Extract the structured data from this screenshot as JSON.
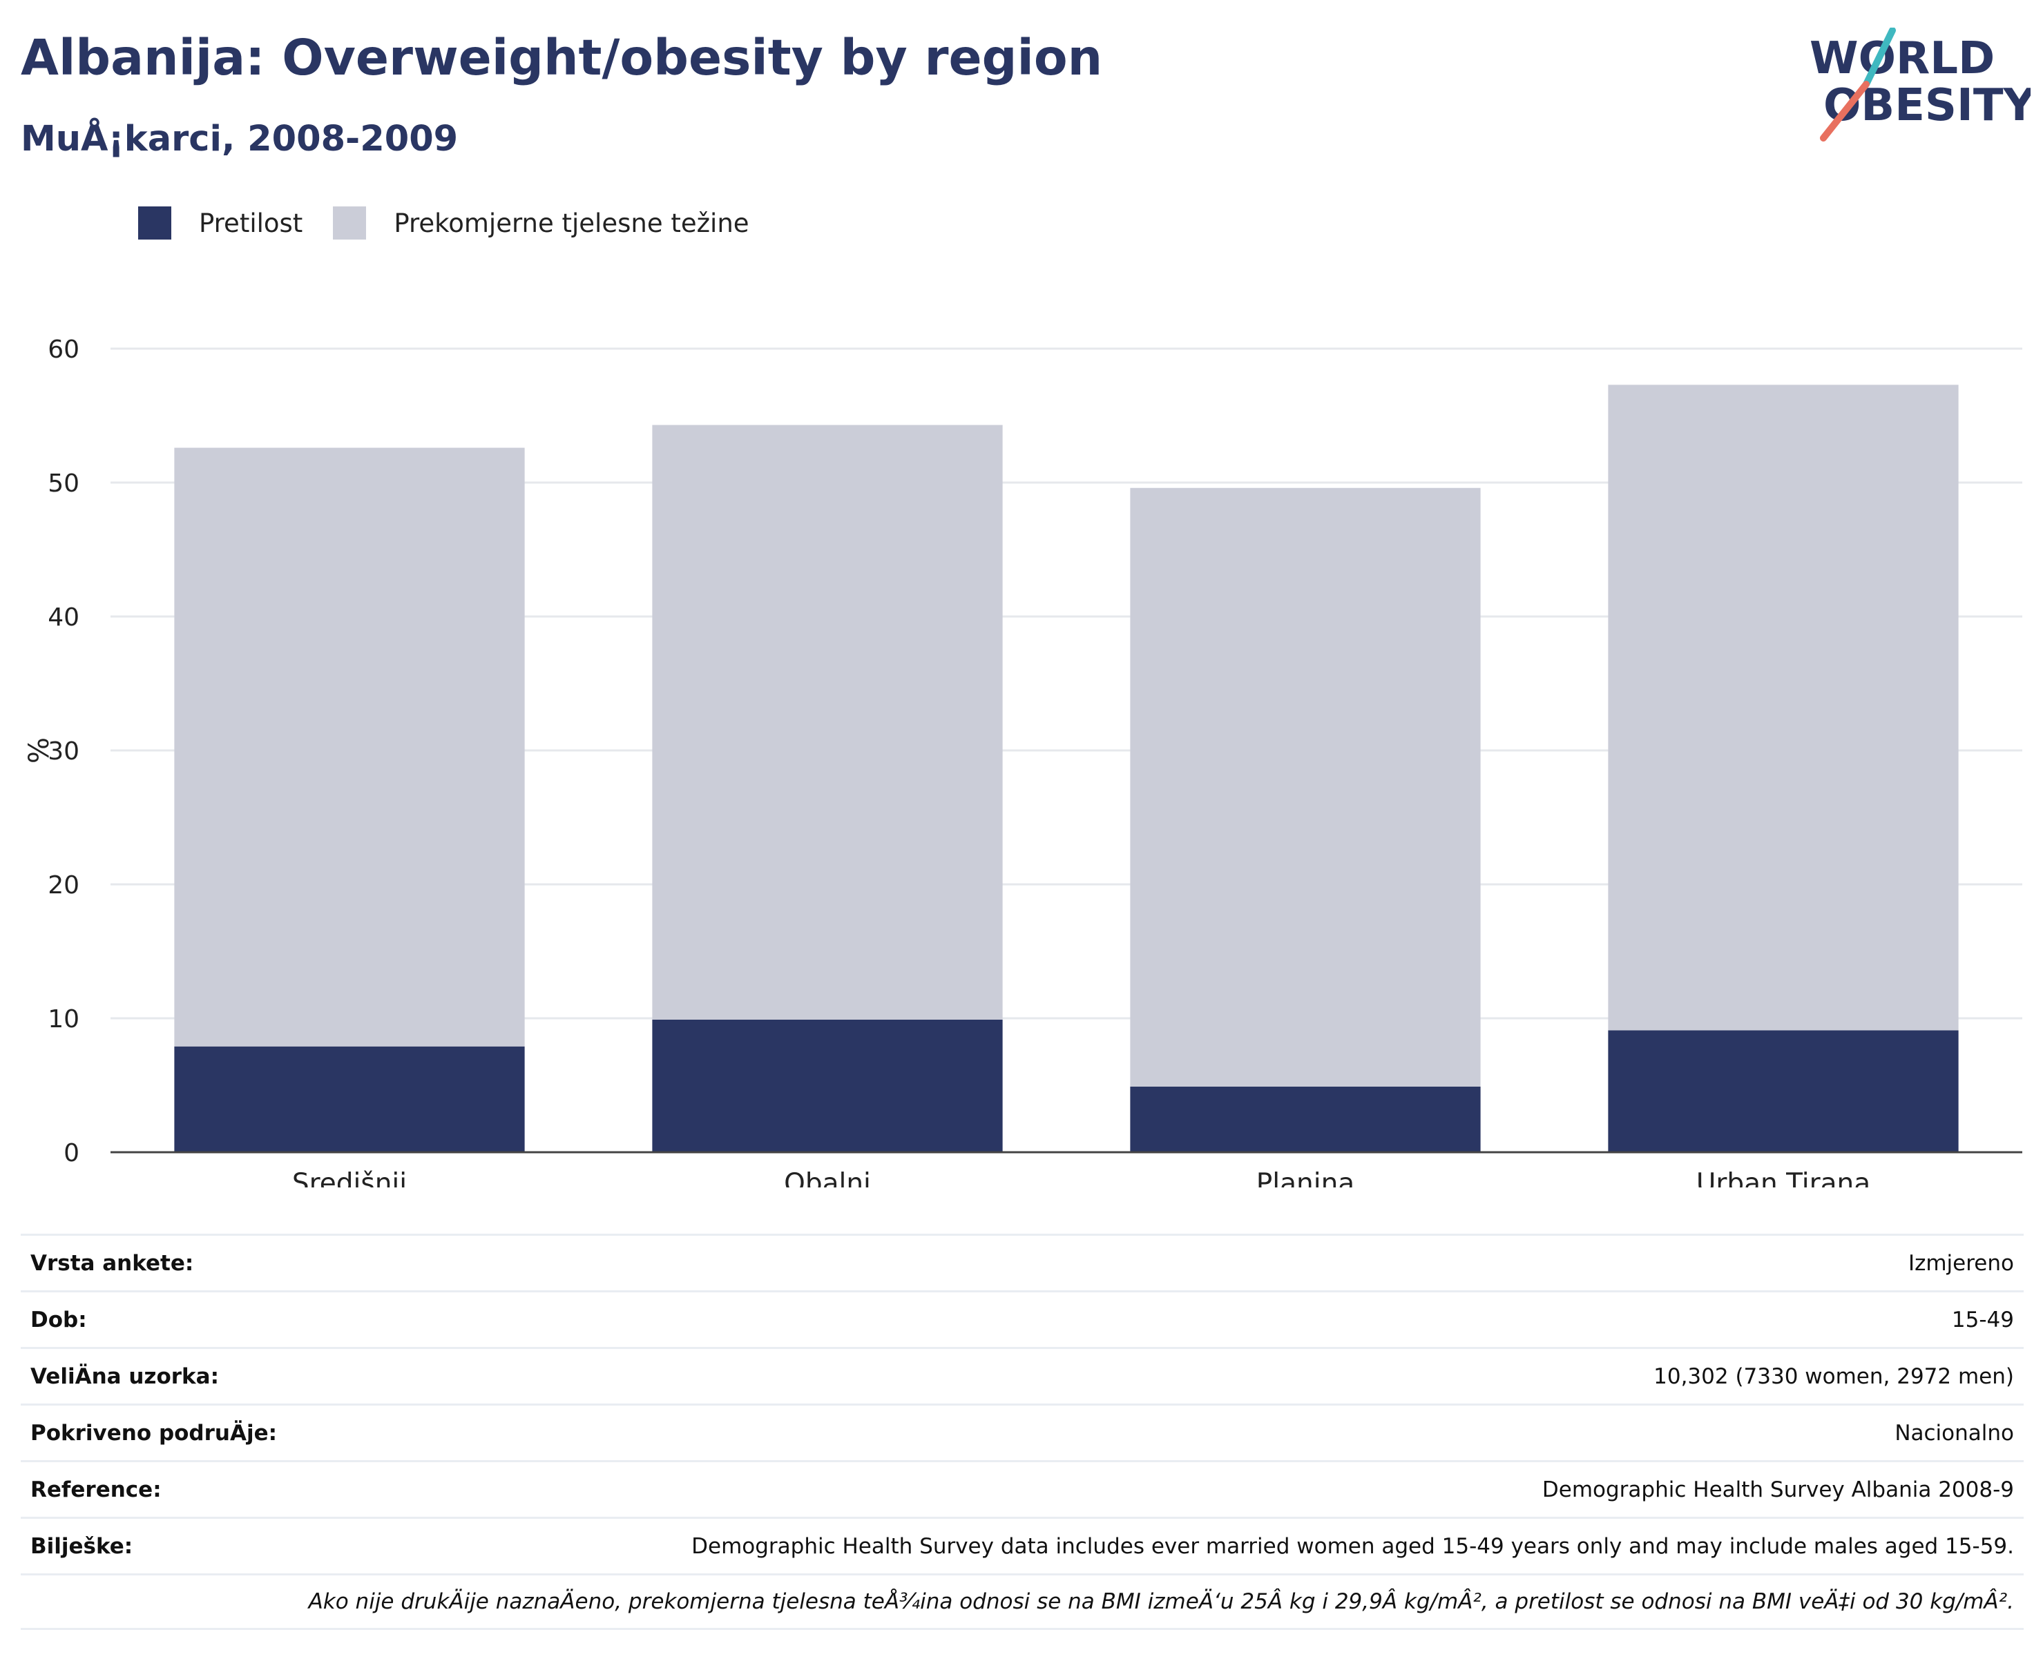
{
  "header": {
    "title": "Albanija: Overweight/obesity by region",
    "subtitle": "MuÅ¡karci, 2008-2009"
  },
  "logo": {
    "line1": "WORLD",
    "line2": "OBESITY",
    "colors": {
      "text": "#2a3663",
      "slash_top": "#3fb8c0",
      "slash_bottom": "#e8705f"
    }
  },
  "colors": {
    "obesity": "#2a3663",
    "overweight": "#cbcdd8",
    "grid": "#e6e8ec",
    "axis": "#444444"
  },
  "chart_data": {
    "type": "bar",
    "stacked": true,
    "categories": [
      "Središnji",
      "Obalni",
      "Planina",
      "Urban Tirana"
    ],
    "series": [
      {
        "name": "Pretilost",
        "values": [
          7.9,
          9.9,
          4.9,
          9.1
        ]
      },
      {
        "name": "Prekomjerne tjelesne težine",
        "values": [
          44.7,
          44.4,
          44.7,
          48.2
        ]
      }
    ],
    "ylabel": "%",
    "ylim": [
      0,
      60
    ],
    "yticks": [
      0,
      10,
      20,
      30,
      40,
      50,
      60
    ],
    "grid": true,
    "legend": "top-left"
  },
  "info": {
    "rows": [
      {
        "key": "Vrsta ankete:",
        "value": "Izmjereno"
      },
      {
        "key": "Dob:",
        "value": "15-49"
      },
      {
        "key": "VeliÄna uzorka:",
        "value": "10,302 (7330 women, 2972 men)"
      },
      {
        "key": "Pokriveno podruÄje:",
        "value": "Nacionalno"
      },
      {
        "key": "Reference:",
        "value": "Demographic Health Survey Albania 2008-9"
      },
      {
        "key": "Bilješke:",
        "value": "Demographic Health Survey data includes ever married women aged 15-49 years only and may include males aged 15-59."
      }
    ],
    "note": "Ako nije drukÄije naznaÄeno, prekomjerna tjelesna teÅ¾ina odnosi se na BMI izmeÄ‘u 25Â kg i 29,9Â kg/mÂ², a pretilost se odnosi na BMI veÄ‡i od 30 kg/mÂ²."
  }
}
